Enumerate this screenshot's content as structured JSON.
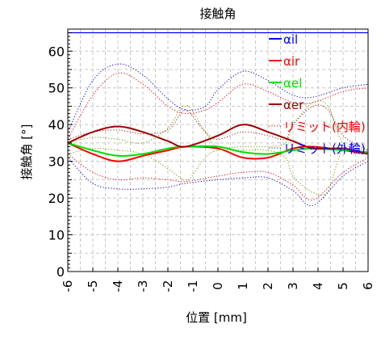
{
  "chart_data": {
    "type": "line",
    "title": "接触角",
    "xlabel": "位置 [mm]",
    "ylabel": "接触角 [°]",
    "xlim": [
      -6,
      6
    ],
    "ylim": [
      0,
      66
    ],
    "xticks": [
      -6,
      -5,
      -4,
      -3,
      -2,
      -1,
      0,
      1,
      2,
      3,
      4,
      5,
      6
    ],
    "yticks": [
      0,
      10,
      20,
      30,
      40,
      50,
      60
    ],
    "grid": true,
    "legend_position": "top-right",
    "series": [
      {
        "name": "αil",
        "color": "#0000ff",
        "style": "solid",
        "x": [
          -6,
          -5,
          -4,
          -3,
          -2,
          -1,
          0,
          1,
          2,
          3,
          4,
          5,
          6
        ],
        "y": [
          65,
          65,
          65,
          65,
          65,
          65,
          65,
          65,
          65,
          65,
          65,
          65,
          65
        ]
      },
      {
        "name": "αir",
        "color": "#ff0000",
        "style": "solid",
        "x": [
          -6,
          -5,
          -4,
          -3,
          -2,
          -1.3,
          0,
          1,
          2,
          3,
          3.8,
          5,
          6
        ],
        "y": [
          35,
          32,
          30,
          31.5,
          33,
          34,
          33.5,
          31,
          31,
          33.5,
          34,
          33,
          32
        ]
      },
      {
        "name": "αel",
        "color": "#00e000",
        "style": "solid",
        "x": [
          -6,
          -5,
          -4,
          -3,
          -2,
          -1.3,
          0,
          1,
          2,
          3,
          3.8,
          5,
          6
        ],
        "y": [
          35,
          33,
          31.5,
          32,
          33.5,
          34,
          34,
          32.5,
          32,
          33,
          33.5,
          33,
          32.5
        ]
      },
      {
        "name": "αer",
        "color": "#a00000",
        "style": "solid",
        "x": [
          -6,
          -5,
          -4,
          -3,
          -2,
          -1.3,
          0,
          1,
          2,
          3,
          3.8,
          5,
          6
        ],
        "y": [
          35,
          38,
          39.5,
          38,
          35.5,
          34,
          37,
          40,
          38,
          35.5,
          33.5,
          33.5,
          32
        ]
      },
      {
        "name": "リミット(内輪)",
        "color": "#ff0000",
        "style": "dotted",
        "x": [
          -6,
          -5,
          -4,
          -3,
          -2,
          -1.3,
          -0.5,
          0,
          1,
          2,
          3,
          3.8,
          5,
          6
        ],
        "y": [
          36,
          48,
          54,
          51,
          45,
          43,
          44,
          46,
          51,
          49,
          46,
          46,
          49,
          50
        ]
      },
      {
        "name": "リミット(外輪)",
        "color": "#0000ff",
        "style": "dotted",
        "x": [
          -6,
          -5,
          -4,
          -3,
          -2,
          -1.3,
          -0.5,
          0,
          1,
          2,
          3,
          3.8,
          5,
          6
        ],
        "y": [
          38,
          52,
          56.5,
          53.5,
          47,
          44,
          45,
          49.5,
          54.5,
          52,
          48,
          47.5,
          50,
          51
        ]
      },
      {
        "name": "",
        "color": "#ff0000",
        "style": "dotted",
        "x": [
          -6,
          -5,
          -4,
          -3,
          -2,
          -1.3,
          0,
          1,
          2,
          3,
          3.8,
          5,
          6
        ],
        "y": [
          32,
          27,
          25,
          25.5,
          25,
          24.5,
          26,
          27,
          27,
          23.5,
          19.5,
          27,
          31
        ]
      },
      {
        "name": "",
        "color": "#0000ff",
        "style": "dotted",
        "x": [
          -6,
          -5,
          -4,
          -3,
          -2,
          -1.3,
          0,
          1,
          2,
          3,
          3.8,
          5,
          6
        ],
        "y": [
          31,
          24,
          22.5,
          22.5,
          23,
          24,
          25,
          25.5,
          25.5,
          22,
          18,
          26,
          30
        ]
      },
      {
        "name": "",
        "color": "#70a000",
        "style": "dotted",
        "x": [
          -6,
          -5,
          -4,
          -3,
          -2,
          -1.5,
          -1.3,
          -1.1,
          -0.5,
          0,
          1,
          2,
          2.7,
          3,
          3.8,
          4.4,
          5,
          6
        ],
        "y": [
          32,
          33.5,
          33,
          32,
          28,
          25.5,
          25,
          25.5,
          31,
          33,
          33,
          33,
          31,
          26,
          21.5,
          22,
          33,
          32
        ]
      },
      {
        "name": "",
        "color": "#70a000",
        "style": "dotted",
        "x": [
          -6,
          -5,
          -4,
          -3,
          -2,
          -1.5,
          -1.3,
          -1.1,
          -0.5,
          0,
          1,
          2,
          2.7,
          3,
          3.8,
          4.4,
          5,
          6
        ],
        "y": [
          35,
          36.5,
          36,
          35,
          39,
          44.5,
          45,
          44.5,
          38,
          34,
          34,
          34,
          35,
          40,
          46,
          45,
          35,
          33
        ]
      },
      {
        "name": "",
        "color": "#a02020",
        "style": "dotted",
        "x": [
          -6,
          -5,
          -4,
          -3,
          -2,
          -1.5,
          -1.3,
          -1.1,
          -0.5,
          0,
          1,
          2,
          2.7,
          3,
          3.8,
          4.4,
          5,
          6
        ],
        "y": [
          36,
          38,
          38.5,
          37.5,
          38.5,
          43,
          44,
          43,
          38,
          36,
          38,
          37,
          36,
          40,
          45,
          44,
          37,
          33
        ]
      }
    ]
  }
}
